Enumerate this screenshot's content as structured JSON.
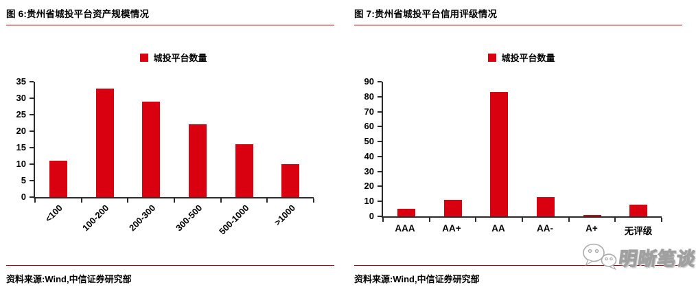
{
  "panels": [
    {
      "title": "图 6:贵州省城投平台资产规模情况",
      "legend": "城投平台数量",
      "source": "资料来源:Wind,中信证券研究部"
    },
    {
      "title": "图 7:贵州省城投平台信用评级情况",
      "legend": "城投平台数量",
      "source": "资料来源:Wind,中信证券研究部"
    }
  ],
  "watermark": {
    "text": "明晰笔谈",
    "icon": "wechat-icon"
  },
  "colors": {
    "bar": "#d9000f",
    "accent_line": "#9e0b0f",
    "axis": "#2b2b2b"
  },
  "chart_data": [
    {
      "type": "bar",
      "title": "图 6:贵州省城投平台资产规模情况",
      "legend": [
        "城投平台数量"
      ],
      "legend_position": "top",
      "categories": [
        "<100",
        "100-200",
        "200-300",
        "300-500",
        "500-1000",
        ">1000"
      ],
      "values": [
        11,
        33,
        29,
        22,
        16,
        10
      ],
      "xlabel": "",
      "ylabel": "",
      "ylim": [
        0,
        35
      ],
      "y_ticks": [
        0,
        5,
        10,
        15,
        20,
        25,
        30,
        35
      ],
      "x_tick_rotation": 45,
      "grid": false,
      "bar_color": "#d9000f"
    },
    {
      "type": "bar",
      "title": "图 7:贵州省城投平台信用评级情况",
      "legend": [
        "城投平台数量"
      ],
      "legend_position": "top",
      "categories": [
        "AAA",
        "AA+",
        "AA",
        "AA-",
        "A+",
        "无评级"
      ],
      "values": [
        5,
        11,
        83,
        13,
        1,
        8
      ],
      "xlabel": "",
      "ylabel": "",
      "ylim": [
        0,
        90
      ],
      "y_ticks": [
        0,
        10,
        20,
        30,
        40,
        50,
        60,
        70,
        80,
        90
      ],
      "x_tick_rotation": 0,
      "grid": false,
      "bar_color": "#d9000f"
    }
  ]
}
